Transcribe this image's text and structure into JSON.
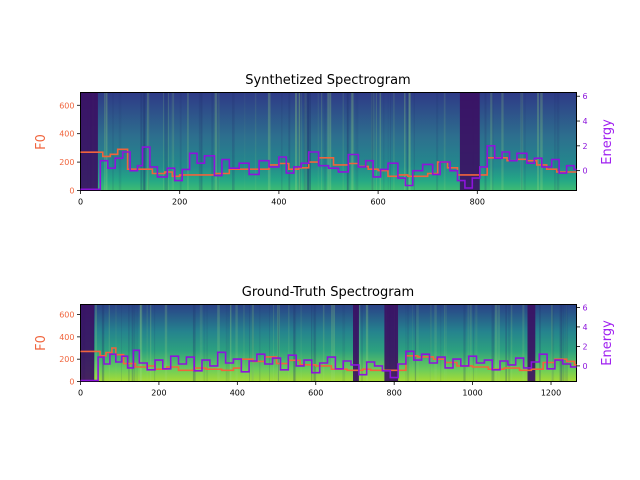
{
  "chart_data": [
    {
      "type": "heatmap",
      "title": "Synthetized Spectrogram",
      "ylabel": "F0",
      "y2label": "Energy",
      "xlim": [
        0,
        1000
      ],
      "ylim": [
        0,
        690
      ],
      "y2lim": [
        -1.6,
        6.3
      ],
      "xticks": [
        "0",
        "200",
        "400",
        "600",
        "800"
      ],
      "yticks": [
        "0",
        "200",
        "400",
        "600"
      ],
      "y2ticks": [
        "0",
        "2",
        "4",
        "6"
      ],
      "colors": {
        "f0": "#f0643c",
        "energy": "#8c14dc",
        "ylabel": "#f0643c",
        "y2label": "#a020f0"
      },
      "series": [
        {
          "name": "F0",
          "x": [
            0,
            40,
            45,
            60,
            75,
            80,
            95,
            130,
            145,
            170,
            185,
            200,
            250,
            270,
            300,
            360,
            380,
            400,
            420,
            440,
            460,
            480,
            510,
            540,
            560,
            580,
            600,
            620,
            640,
            660,
            680,
            700,
            720,
            740,
            760,
            800,
            820,
            840,
            860,
            880,
            900,
            920,
            940,
            960,
            990
          ],
          "values": [
            270,
            270,
            240,
            255,
            290,
            290,
            150,
            150,
            120,
            130,
            100,
            110,
            110,
            120,
            150,
            150,
            180,
            190,
            150,
            160,
            200,
            230,
            180,
            190,
            170,
            150,
            140,
            100,
            110,
            100,
            100,
            120,
            200,
            160,
            110,
            110,
            230,
            230,
            210,
            220,
            210,
            180,
            150,
            130,
            130
          ]
        },
        {
          "name": "Energy",
          "x": [
            0,
            30,
            40,
            55,
            70,
            85,
            100,
            115,
            125,
            140,
            155,
            175,
            190,
            205,
            220,
            235,
            250,
            270,
            285,
            300,
            320,
            340,
            360,
            380,
            400,
            415,
            430,
            445,
            460,
            480,
            500,
            520,
            540,
            560,
            575,
            590,
            605,
            620,
            640,
            655,
            670,
            690,
            710,
            725,
            745,
            760,
            775,
            790,
            805,
            820,
            835,
            850,
            865,
            880,
            900,
            915,
            930,
            950,
            965,
            980,
            995
          ],
          "values": [
            -1.5,
            -1.5,
            0.8,
            0.2,
            1.0,
            1.5,
            0.0,
            0.4,
            1.9,
            0.3,
            -0.5,
            0.2,
            -0.8,
            0.1,
            1.4,
            0.6,
            1.2,
            -0.4,
            0.9,
            0.2,
            0.6,
            -0.3,
            0.8,
            0.3,
            1.1,
            -0.2,
            0.3,
            0.6,
            1.5,
            0.4,
            0.2,
            -0.1,
            1.3,
            0.3,
            0.8,
            -0.5,
            0.1,
            0.6,
            -0.6,
            -1.2,
            0.0,
            0.5,
            -0.3,
            0.7,
            0.0,
            -0.8,
            -1.4,
            -0.6,
            0.3,
            2.0,
            1.0,
            1.5,
            0.8,
            1.4,
            0.6,
            1.0,
            0.3,
            0.9,
            -0.2,
            0.4,
            0.1
          ]
        }
      ]
    },
    {
      "type": "heatmap",
      "title": "Ground-Truth Spectrogram",
      "ylabel": "F0",
      "y2label": "Energy",
      "xlim": [
        0,
        1265
      ],
      "ylim": [
        0,
        690
      ],
      "y2lim": [
        -1.6,
        6.3
      ],
      "xticks": [
        "0",
        "200",
        "400",
        "600",
        "800",
        "1000",
        "1200"
      ],
      "yticks": [
        "0",
        "200",
        "400",
        "600"
      ],
      "y2ticks": [
        "0",
        "2",
        "4",
        "6"
      ],
      "colors": {
        "f0": "#f0643c",
        "energy": "#8c14dc",
        "ylabel": "#f0643c",
        "y2label": "#a020f0"
      },
      "series": [
        {
          "name": "F0",
          "x": [
            0,
            40,
            50,
            65,
            80,
            90,
            110,
            140,
            170,
            190,
            220,
            250,
            290,
            320,
            360,
            390,
            410,
            440,
            470,
            500,
            530,
            560,
            600,
            640,
            680,
            700,
            720,
            740,
            760,
            800,
            830,
            860,
            900,
            930,
            960,
            1000,
            1040,
            1080,
            1120,
            1150,
            1180,
            1210,
            1240,
            1260
          ],
          "values": [
            270,
            270,
            230,
            260,
            300,
            240,
            160,
            130,
            140,
            110,
            130,
            100,
            120,
            110,
            100,
            120,
            200,
            180,
            220,
            160,
            190,
            150,
            140,
            110,
            100,
            100,
            110,
            100,
            100,
            100,
            230,
            220,
            200,
            170,
            140,
            130,
            110,
            120,
            100,
            110,
            170,
            200,
            180,
            150
          ]
        },
        {
          "name": "Energy",
          "x": [
            0,
            30,
            45,
            60,
            75,
            90,
            105,
            120,
            135,
            150,
            170,
            190,
            210,
            230,
            250,
            270,
            290,
            310,
            330,
            350,
            370,
            390,
            410,
            430,
            450,
            470,
            490,
            510,
            530,
            550,
            570,
            590,
            610,
            630,
            650,
            670,
            690,
            710,
            730,
            750,
            770,
            790,
            810,
            830,
            850,
            870,
            890,
            910,
            930,
            950,
            970,
            990,
            1010,
            1030,
            1050,
            1070,
            1090,
            1110,
            1130,
            1150,
            1170,
            1190,
            1210,
            1230,
            1250
          ],
          "values": [
            -1.5,
            -1.5,
            0.9,
            0.2,
            1.2,
            0.4,
            1.0,
            -0.2,
            1.6,
            0.3,
            -0.4,
            0.6,
            -0.3,
            1.0,
            0.2,
            0.9,
            -0.5,
            0.6,
            0.0,
            1.4,
            0.3,
            0.7,
            -0.6,
            0.5,
            1.2,
            0.2,
            0.8,
            -0.4,
            1.1,
            0.0,
            0.6,
            -0.7,
            0.3,
            0.9,
            -0.3,
            0.5,
            0.1,
            -0.9,
            0.4,
            0.0,
            -0.5,
            -1.2,
            0.2,
            1.5,
            0.6,
            1.2,
            0.3,
            0.9,
            -0.2,
            0.7,
            0.0,
            1.0,
            0.3,
            0.6,
            -0.4,
            0.5,
            0.1,
            0.8,
            -0.2,
            0.4,
            1.2,
            -0.3,
            0.6,
            0.2,
            -0.1
          ]
        }
      ]
    }
  ]
}
